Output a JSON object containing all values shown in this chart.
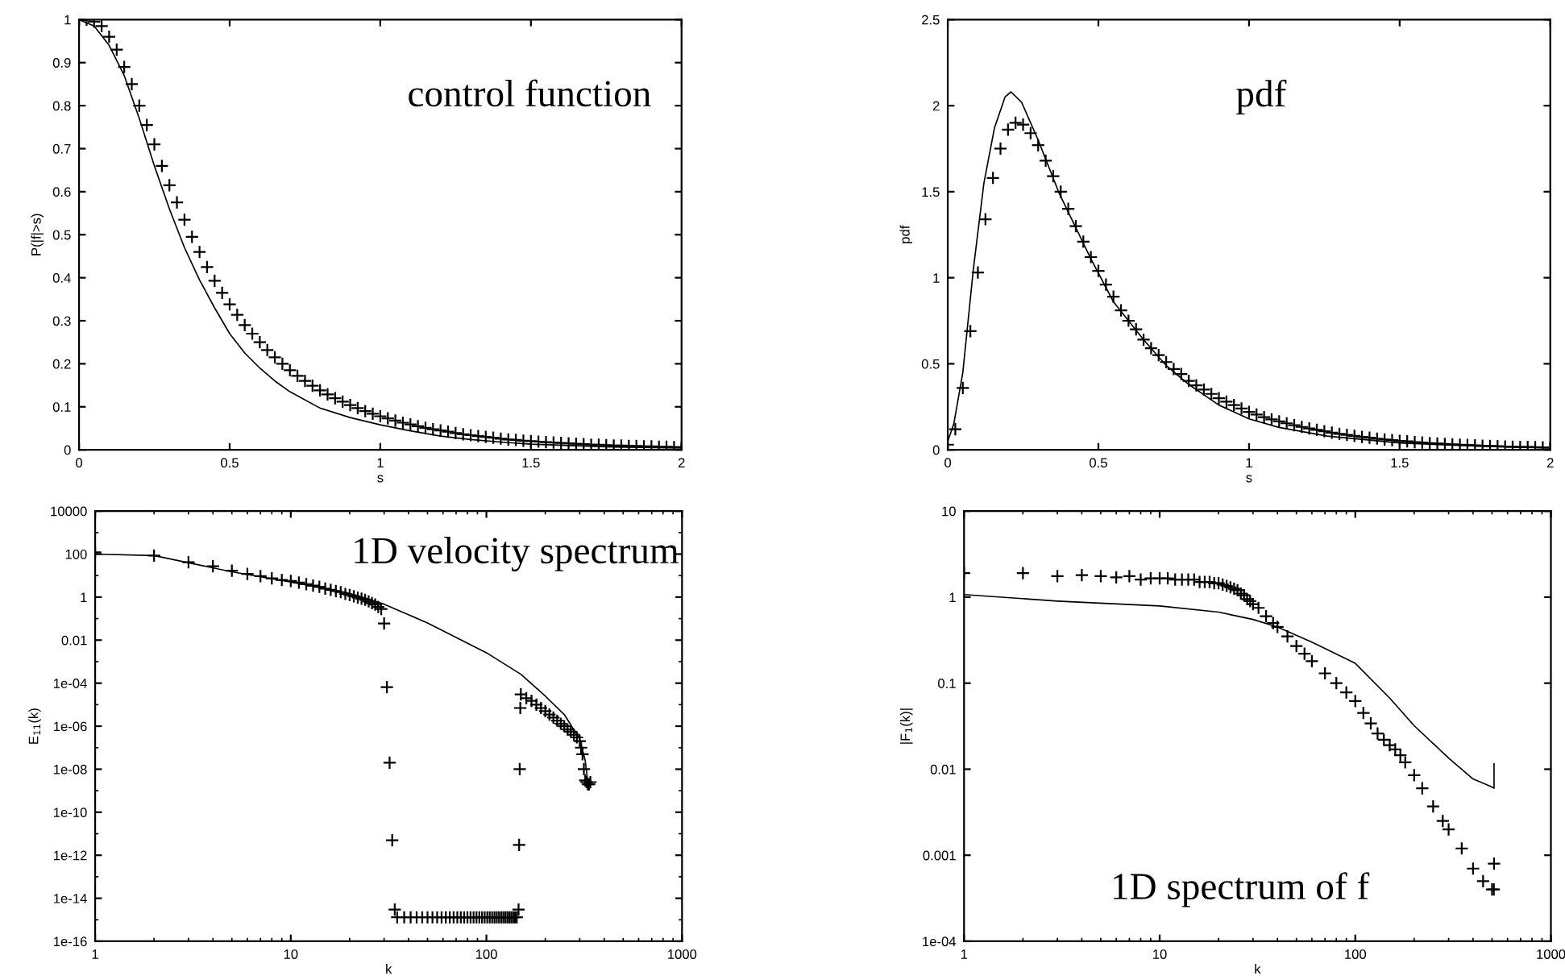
{
  "chart_data": [
    {
      "type": "line",
      "xlabel": "s",
      "ylabel": "P(|f|>s)",
      "annotations": [
        "control function"
      ],
      "xlim": [
        0,
        2
      ],
      "ylim": [
        0,
        1
      ],
      "xticks": [
        0,
        0.5,
        1,
        1.5,
        2
      ],
      "yticks": [
        0,
        0.1,
        0.2,
        0.3,
        0.4,
        0.5,
        0.6,
        0.7,
        0.8,
        0.9,
        1
      ],
      "series": [
        {
          "color": "#000000",
          "line_style": "solid",
          "x": [
            0,
            0.05,
            0.1,
            0.15,
            0.2,
            0.25,
            0.3,
            0.35,
            0.4,
            0.45,
            0.5,
            0.55,
            0.6,
            0.65,
            0.7,
            0.8,
            0.9,
            1.0,
            1.1,
            1.2,
            1.3,
            1.4,
            1.5,
            1.75,
            2.0
          ],
          "values": [
            1,
            0.985,
            0.94,
            0.87,
            0.77,
            0.66,
            0.56,
            0.47,
            0.395,
            0.33,
            0.27,
            0.225,
            0.19,
            0.16,
            0.135,
            0.097,
            0.075,
            0.058,
            0.044,
            0.032,
            0.024,
            0.018,
            0.013,
            0.007,
            0.004
          ]
        },
        {
          "type": "scatter",
          "color": "#000000",
          "marker": "cross",
          "x": [
            0,
            0.025,
            0.05,
            0.075,
            0.1,
            0.125,
            0.15,
            0.175,
            0.2,
            0.225,
            0.25,
            0.275,
            0.3,
            0.325,
            0.35,
            0.375,
            0.4,
            0.425,
            0.45,
            0.475,
            0.5,
            0.525,
            0.55,
            0.575,
            0.6,
            0.625,
            0.65,
            0.675,
            0.7,
            0.725,
            0.75,
            0.775,
            0.8,
            0.825,
            0.85,
            0.875,
            0.9,
            0.925,
            0.95,
            0.975,
            1.0,
            1.025,
            1.05,
            1.075,
            1.1,
            1.125,
            1.15,
            1.175,
            1.2,
            1.225,
            1.25,
            1.275,
            1.3,
            1.325,
            1.35,
            1.375,
            1.4,
            1.425,
            1.45,
            1.475,
            1.5,
            1.525,
            1.55,
            1.575,
            1.6,
            1.625,
            1.65,
            1.675,
            1.7,
            1.725,
            1.75,
            1.775,
            1.8,
            1.825,
            1.85,
            1.875,
            1.9,
            1.925,
            1.95,
            1.975,
            2.0
          ],
          "values": [
            1.0,
            1.0,
            0.995,
            0.985,
            0.96,
            0.93,
            0.89,
            0.85,
            0.8,
            0.755,
            0.71,
            0.66,
            0.615,
            0.575,
            0.535,
            0.495,
            0.46,
            0.425,
            0.393,
            0.365,
            0.338,
            0.314,
            0.29,
            0.27,
            0.25,
            0.232,
            0.215,
            0.2,
            0.185,
            0.172,
            0.16,
            0.149,
            0.138,
            0.129,
            0.12,
            0.112,
            0.104,
            0.097,
            0.09,
            0.084,
            0.078,
            0.073,
            0.068,
            0.063,
            0.059,
            0.055,
            0.051,
            0.048,
            0.045,
            0.042,
            0.039,
            0.036,
            0.034,
            0.032,
            0.03,
            0.028,
            0.026,
            0.024,
            0.023,
            0.021,
            0.02,
            0.019,
            0.018,
            0.017,
            0.016,
            0.015,
            0.014,
            0.013,
            0.012,
            0.012,
            0.011,
            0.01,
            0.01,
            0.009,
            0.009,
            0.008,
            0.008,
            0.007,
            0.007,
            0.006,
            0.006
          ]
        }
      ]
    },
    {
      "type": "line",
      "xlabel": "s",
      "ylabel": "pdf",
      "annotations": [
        "pdf"
      ],
      "xlim": [
        0,
        2
      ],
      "ylim": [
        0,
        2.5
      ],
      "xticks": [
        0,
        0.5,
        1,
        1.5,
        2
      ],
      "yticks": [
        0,
        0.5,
        1,
        1.5,
        2,
        2.5
      ],
      "series": [
        {
          "color": "#000000",
          "line_style": "solid",
          "x": [
            0,
            0.02,
            0.05,
            0.085,
            0.12,
            0.155,
            0.19,
            0.21,
            0.245,
            0.3,
            0.37,
            0.475,
            0.55,
            0.6,
            0.65,
            0.725,
            0.8,
            0.9,
            1.0,
            1.1,
            1.26,
            1.5,
            1.75,
            2.0
          ],
          "values": [
            0.05,
            0.15,
            0.45,
            1.05,
            1.55,
            1.87,
            2.05,
            2.08,
            2.02,
            1.8,
            1.49,
            1.11,
            0.86,
            0.75,
            0.64,
            0.49,
            0.38,
            0.26,
            0.18,
            0.13,
            0.08,
            0.04,
            0.022,
            0.01
          ]
        },
        {
          "type": "scatter",
          "color": "#000000",
          "marker": "cross",
          "x": [
            0,
            0.025,
            0.05,
            0.075,
            0.1,
            0.125,
            0.15,
            0.175,
            0.2,
            0.225,
            0.25,
            0.275,
            0.3,
            0.325,
            0.35,
            0.375,
            0.4,
            0.425,
            0.45,
            0.475,
            0.5,
            0.525,
            0.55,
            0.575,
            0.6,
            0.625,
            0.65,
            0.675,
            0.7,
            0.725,
            0.75,
            0.775,
            0.8,
            0.825,
            0.85,
            0.875,
            0.9,
            0.925,
            0.95,
            0.975,
            1.0,
            1.025,
            1.05,
            1.075,
            1.1,
            1.125,
            1.15,
            1.175,
            1.2,
            1.225,
            1.25,
            1.275,
            1.3,
            1.325,
            1.35,
            1.375,
            1.4,
            1.425,
            1.45,
            1.475,
            1.5,
            1.525,
            1.55,
            1.575,
            1.6,
            1.625,
            1.65,
            1.675,
            1.7,
            1.725,
            1.75,
            1.775,
            1.8,
            1.825,
            1.85,
            1.875,
            1.9,
            1.925,
            1.95,
            1.975,
            2.0
          ],
          "values": [
            0.03,
            0.12,
            0.36,
            0.69,
            1.03,
            1.34,
            1.58,
            1.75,
            1.86,
            1.9,
            1.89,
            1.84,
            1.77,
            1.68,
            1.59,
            1.5,
            1.4,
            1.3,
            1.21,
            1.12,
            1.04,
            0.96,
            0.89,
            0.81,
            0.75,
            0.7,
            0.64,
            0.59,
            0.55,
            0.51,
            0.47,
            0.44,
            0.4,
            0.375,
            0.35,
            0.325,
            0.3,
            0.28,
            0.26,
            0.24,
            0.22,
            0.205,
            0.19,
            0.177,
            0.165,
            0.154,
            0.143,
            0.133,
            0.124,
            0.116,
            0.108,
            0.1,
            0.093,
            0.087,
            0.081,
            0.075,
            0.07,
            0.065,
            0.06,
            0.056,
            0.052,
            0.049,
            0.045,
            0.042,
            0.039,
            0.036,
            0.034,
            0.032,
            0.03,
            0.028,
            0.026,
            0.024,
            0.022,
            0.021,
            0.019,
            0.018,
            0.017,
            0.016,
            0.015,
            0.014,
            0.013
          ]
        }
      ]
    },
    {
      "type": "line",
      "xlabel": "k",
      "ylabel": "E$_{11}$(k)",
      "annotations": [
        "1D velocity spectrum"
      ],
      "log": "xy",
      "xlim": [
        1,
        1000
      ],
      "ylim": [
        1e-16,
        10000
      ],
      "xticks": [
        1,
        10,
        100,
        1000
      ],
      "yticks": [
        {
          "value": 1e-16,
          "label": "1e-16"
        },
        {
          "value": 1e-14,
          "label": "1e-14"
        },
        {
          "value": 1e-12,
          "label": "1e-12"
        },
        {
          "value": 1e-10,
          "label": "1e-10"
        },
        {
          "value": 1e-08,
          "label": "1e-08"
        },
        {
          "value": 1e-06,
          "label": "1e-06"
        },
        {
          "value": 0.0001,
          "label": "1e-04"
        },
        0.01,
        1,
        100,
        10000
      ],
      "series": [
        {
          "color": "#000000",
          "line_style": "solid",
          "x": [
            1,
            2,
            5,
            10,
            20,
            30,
            50,
            100,
            150,
            200,
            250,
            300,
            320,
            330
          ],
          "values": [
            100,
            85,
            15,
            5,
            1.5,
            0.47,
            0.063,
            0.0026,
            0.00026,
            2.5e-05,
            3.5e-06,
            2.5e-07,
            2.5e-08,
            2.5e-09
          ]
        },
        {
          "type": "scatter",
          "color": "#000000",
          "marker": "cross",
          "x": [
            1,
            2,
            3,
            4,
            5,
            6,
            7,
            8,
            9,
            10,
            11,
            12,
            13,
            14,
            15,
            16,
            17,
            18,
            19,
            20,
            21,
            22,
            23,
            24,
            25,
            26,
            27,
            28,
            29,
            30,
            31,
            32,
            33,
            34,
            35,
            38,
            41,
            44,
            47,
            50,
            53,
            56,
            59,
            62,
            65,
            68,
            71,
            74,
            77,
            80,
            83,
            86,
            89,
            92,
            95,
            98,
            101,
            104,
            107,
            110,
            113,
            116,
            119,
            122,
            125,
            128,
            131,
            134,
            137,
            140,
            143,
            146,
            147,
            148,
            149,
            150,
            160,
            170,
            180,
            190,
            200,
            210,
            220,
            230,
            240,
            250,
            260,
            270,
            280,
            290,
            300,
            305,
            310,
            315,
            320,
            325,
            330,
            335,
            340
          ],
          "values": [
            120,
            85,
            42,
            27,
            17,
            12,
            9.5,
            7.5,
            6.3,
            5.6,
            4.7,
            4,
            3.4,
            3,
            2.5,
            2.2,
            1.9,
            1.7,
            1.4,
            1.25,
            1.1,
            0.95,
            0.84,
            0.75,
            0.63,
            0.53,
            0.45,
            0.35,
            0.28,
            0.06,
            6.5e-05,
            2e-08,
            5e-12,
            3e-15,
            1.3e-15,
            1.3e-15,
            1.3e-15,
            1.3e-15,
            1.3e-15,
            1.3e-15,
            1.3e-15,
            1.3e-15,
            1.3e-15,
            1.3e-15,
            1.3e-15,
            1.3e-15,
            1.3e-15,
            1.3e-15,
            1.3e-15,
            1.3e-15,
            1.3e-15,
            1.3e-15,
            1.3e-15,
            1.3e-15,
            1.3e-15,
            1.3e-15,
            1.3e-15,
            1.3e-15,
            1.3e-15,
            1.3e-15,
            1.3e-15,
            1.3e-15,
            1.3e-15,
            1.3e-15,
            1.3e-15,
            1.3e-15,
            1.3e-15,
            1.3e-15,
            1.3e-15,
            1.3e-15,
            1.3e-15,
            3e-15,
            3e-12,
            1e-08,
            7e-06,
            3e-05,
            2e-05,
            1.5e-05,
            1e-05,
            7e-06,
            5e-06,
            3.5e-06,
            2.5e-06,
            1.8e-06,
            1.3e-06,
            1e-06,
            7e-07,
            5.5e-07,
            4e-07,
            3e-07,
            2e-07,
            1e-07,
            5e-08,
            1e-08,
            3e-09,
            2.5e-09,
            2e-09,
            2e-09,
            2.5e-09
          ]
        }
      ]
    },
    {
      "type": "line",
      "xlabel": "k",
      "ylabel": "|F$_{1}$(k)|",
      "annotations": [
        "1D spectrum of f"
      ],
      "log": "xy",
      "xlim": [
        1,
        1000
      ],
      "ylim": [
        0.0001,
        10
      ],
      "xticks": [
        1,
        10,
        100,
        1000
      ],
      "yticks": [
        {
          "value": 0.0001,
          "label": "1e-04"
        },
        0.001,
        0.01,
        0.1,
        1,
        10
      ],
      "series": [
        {
          "color": "#000000",
          "line_style": "solid",
          "x": [
            1,
            3,
            10,
            20,
            30,
            40,
            60,
            100,
            150,
            200,
            300,
            400,
            500,
            512,
            512
          ],
          "values": [
            1.07,
            0.9,
            0.79,
            0.67,
            0.55,
            0.45,
            0.3,
            0.17,
            0.067,
            0.032,
            0.0135,
            0.0077,
            0.0062,
            0.006,
            0.0115
          ]
        },
        {
          "type": "scatter",
          "color": "#000000",
          "marker": "cross",
          "x": [
            1,
            2,
            3,
            4,
            5,
            6,
            7,
            8,
            9,
            10,
            11,
            12,
            13,
            14,
            15,
            16,
            17,
            18,
            19,
            20,
            21,
            22,
            23,
            24,
            25,
            26,
            27,
            28,
            29,
            30,
            32,
            35,
            38,
            40,
            45,
            50,
            55,
            60,
            70,
            80,
            90,
            100,
            110,
            120,
            130,
            140,
            150,
            160,
            170,
            180,
            200,
            220,
            250,
            280,
            300,
            350,
            400,
            450,
            500,
            511,
            512
          ],
          "values": [
            1.9,
            1.9,
            1.75,
            1.8,
            1.75,
            1.7,
            1.75,
            1.6,
            1.65,
            1.65,
            1.65,
            1.6,
            1.6,
            1.6,
            1.6,
            1.5,
            1.5,
            1.5,
            1.45,
            1.45,
            1.4,
            1.35,
            1.3,
            1.25,
            1.2,
            1.1,
            1.05,
            0.95,
            0.9,
            0.83,
            0.75,
            0.6,
            0.5,
            0.45,
            0.35,
            0.27,
            0.22,
            0.18,
            0.13,
            0.1,
            0.078,
            0.062,
            0.045,
            0.034,
            0.026,
            0.022,
            0.019,
            0.017,
            0.0145,
            0.012,
            0.0085,
            0.006,
            0.0037,
            0.0025,
            0.002,
            0.0012,
            0.0007,
            0.0005,
            0.0004,
            0.0004,
            0.0008
          ]
        }
      ]
    }
  ]
}
